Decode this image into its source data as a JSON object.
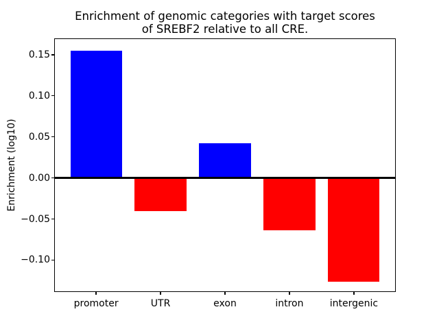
{
  "chart_data": {
    "type": "bar",
    "title": "Enrichment of genomic categories with target scores\nof SREBF2 relative to all CRE.",
    "xlabel": "",
    "ylabel": "Enrichment (log10)",
    "categories": [
      "promoter",
      "UTR",
      "exon",
      "intron",
      "intergenic"
    ],
    "values": [
      0.155,
      -0.04,
      0.042,
      -0.064,
      -0.126
    ],
    "colors": [
      "#0000ff",
      "#ff0000",
      "#0000ff",
      "#ff0000",
      "#ff0000"
    ],
    "positive_color": "#0000ff",
    "negative_color": "#ff0000",
    "ylim": [
      -0.138,
      0.169
    ],
    "xlim": [
      -0.64,
      4.64
    ],
    "bar_width": 0.8,
    "yticks": [
      {
        "label": "0.15",
        "value": 0.15
      },
      {
        "label": "0.10",
        "value": 0.1
      },
      {
        "label": "0.05",
        "value": 0.05
      },
      {
        "label": "0.00",
        "value": 0.0
      },
      {
        "label": "−0.05",
        "value": -0.05
      },
      {
        "label": "−0.10",
        "value": -0.1
      }
    ],
    "zero_line": true,
    "grid": false,
    "legend": "none",
    "background_color": "#ffffff",
    "axis_color": "#000000"
  }
}
